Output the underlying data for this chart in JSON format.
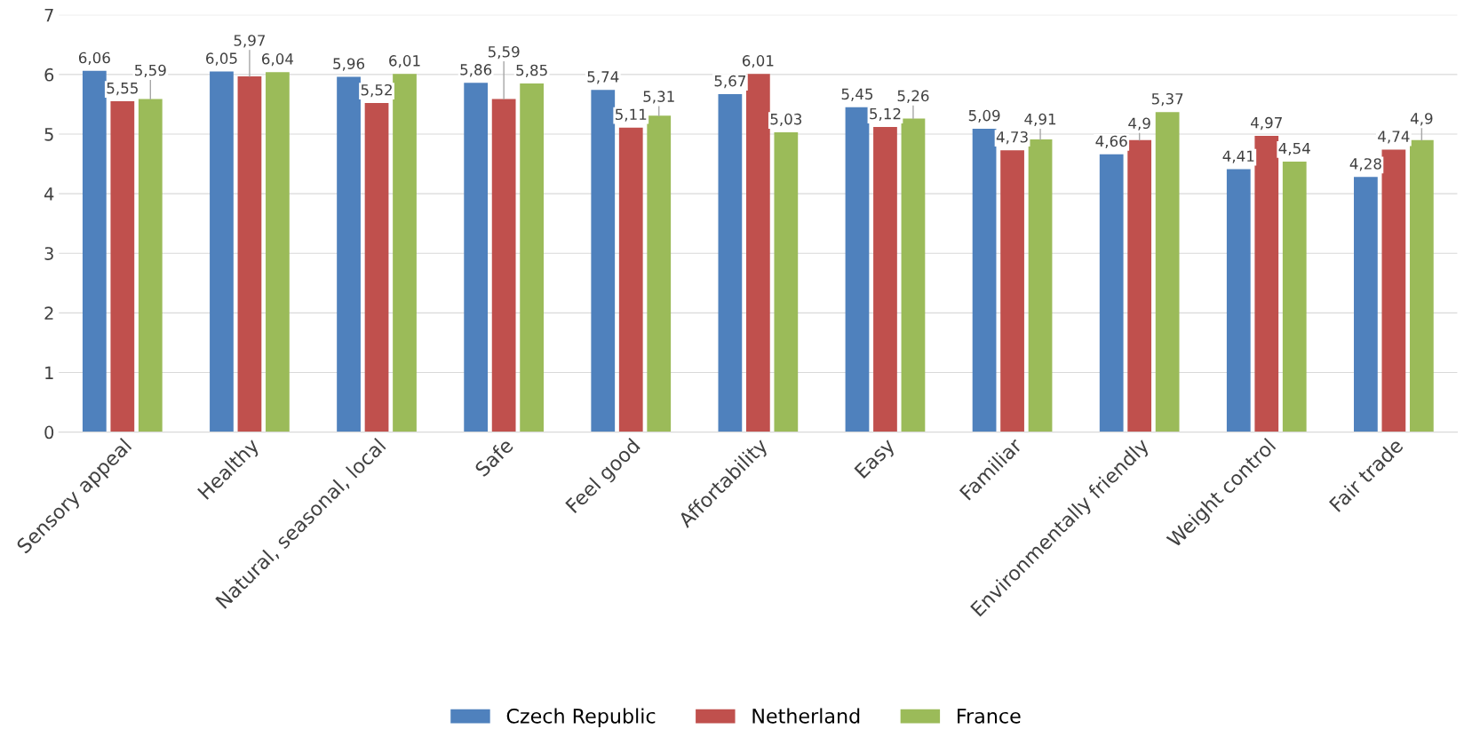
{
  "chart_data": {
    "type": "bar",
    "categories": [
      "Sensory appeal",
      "Healthy",
      "Natural, seasonal, local",
      "Safe",
      "Feel good",
      "Affortability",
      "Easy",
      "Familiar",
      "Environmentally friendly",
      "Weight control",
      "Fair trade"
    ],
    "series": [
      {
        "name": "Czech Republic",
        "color": "#4f81bd",
        "values": [
          6.06,
          6.05,
          5.96,
          5.86,
          5.74,
          5.67,
          5.45,
          5.09,
          4.66,
          4.41,
          4.28
        ],
        "value_labels": [
          "6,06",
          "6,05",
          "5,96",
          "5,86",
          "5,74",
          "5,67",
          "5,45",
          "5,09",
          "4,66",
          "4,41",
          "4,28"
        ]
      },
      {
        "name": "Netherland",
        "color": "#c0504d",
        "values": [
          5.55,
          5.97,
          5.52,
          5.59,
          5.11,
          6.01,
          5.12,
          4.73,
          4.9,
          4.97,
          4.74
        ],
        "value_labels": [
          "5,55",
          "5,97",
          "5,52",
          "5,59",
          "5,11",
          "6,01",
          "5,12",
          "4,73",
          "4,9",
          "4,97",
          "4,74"
        ]
      },
      {
        "name": "France",
        "color": "#9bbb59",
        "values": [
          5.59,
          6.04,
          6.01,
          5.85,
          5.31,
          5.03,
          5.26,
          4.91,
          5.37,
          4.54,
          4.9
        ],
        "value_labels": [
          "5,59",
          "6,04",
          "6,01",
          "5,85",
          "5,31",
          "5,03",
          "5,26",
          "4,91",
          "5,37",
          "4,54",
          "4,9"
        ]
      }
    ],
    "ylim": [
      0,
      7
    ],
    "yticks": [
      0,
      1,
      2,
      3,
      4,
      5,
      6,
      7
    ],
    "grid": "y",
    "legend": "bottom"
  }
}
